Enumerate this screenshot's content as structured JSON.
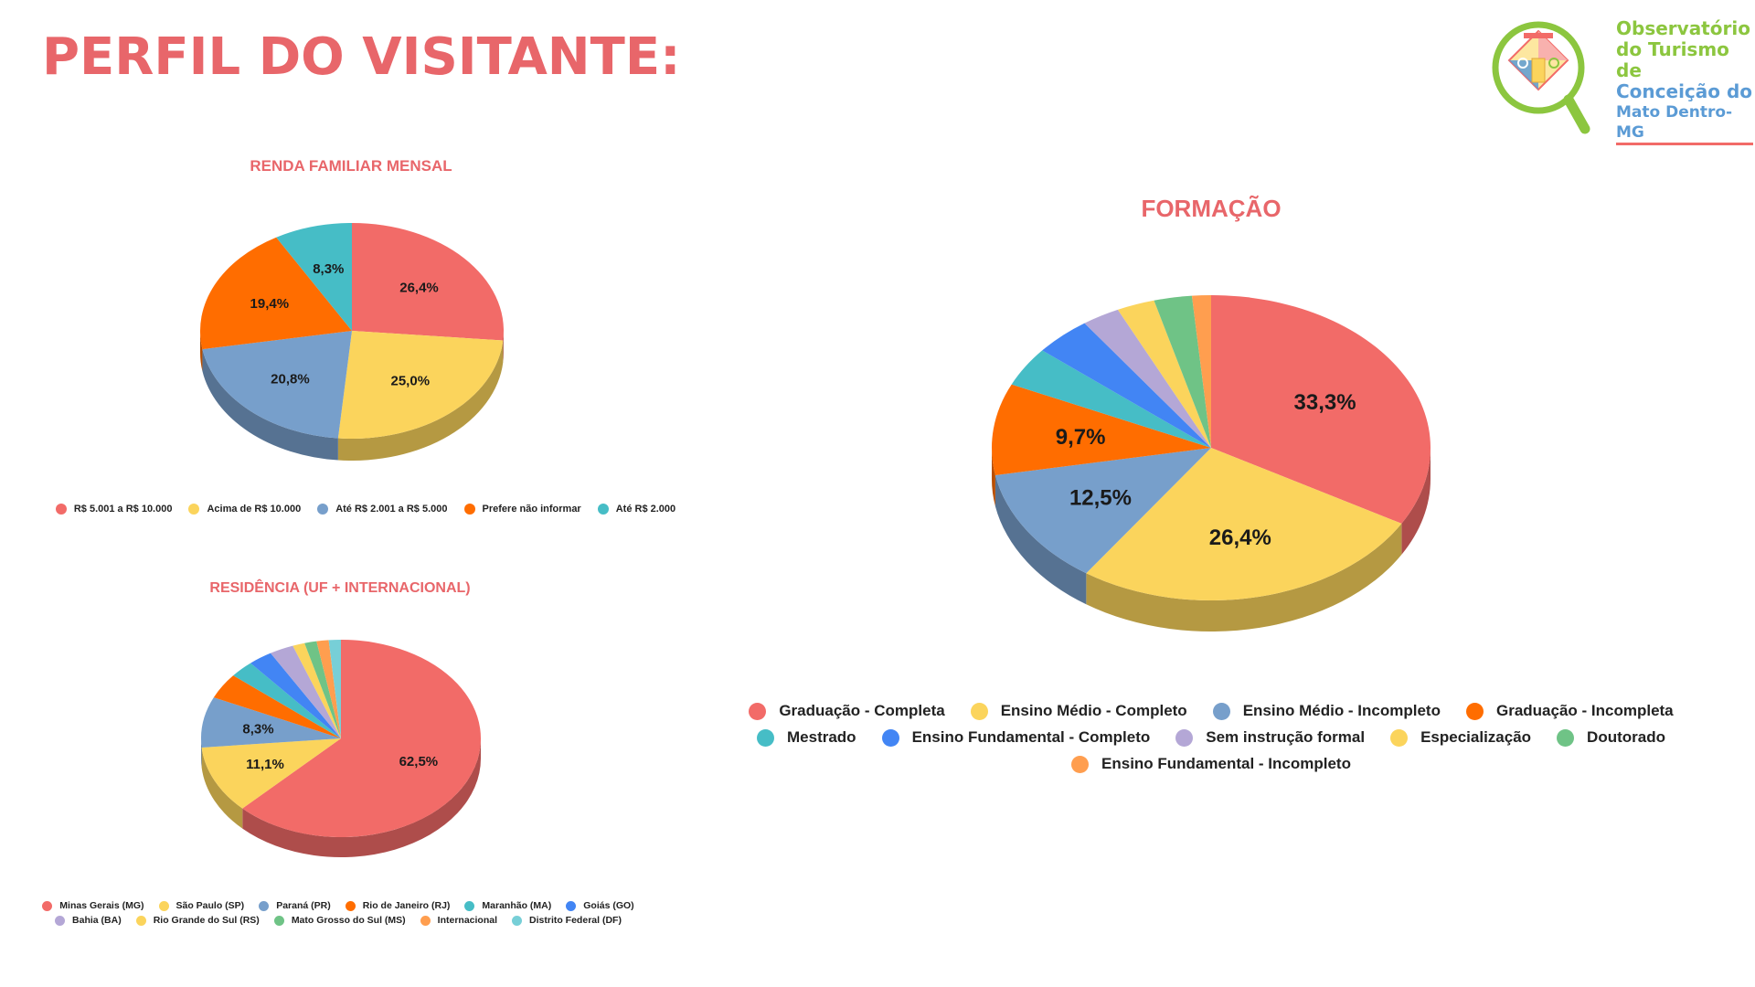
{
  "page": {
    "title": "PERFIL DO VISITANTE:"
  },
  "logo": {
    "lines": [
      "Observatório",
      "do Turismo de",
      "Conceição do",
      "Mato Dentro-MG"
    ],
    "colors": [
      "#8cc63f",
      "#8cc63f",
      "#5b9bd5",
      "#5b9bd5"
    ]
  },
  "chart_data": [
    {
      "id": "renda",
      "type": "pie",
      "title": "RENDA FAMILIAR MENSAL",
      "slices": [
        {
          "name": "R$ 5.001 a R$ 10.000",
          "value": 26.4,
          "label": "26,4%",
          "color": "#f26b68"
        },
        {
          "name": "Acima de R$ 10.000",
          "value": 25.0,
          "label": "25,0%",
          "color": "#fbd45c"
        },
        {
          "name": "Até R$ 2.001 a R$ 5.000",
          "value": 20.8,
          "label": "20,8%",
          "color": "#779fcb"
        },
        {
          "name": "Prefere não informar",
          "value": 19.4,
          "label": "19,4%",
          "color": "#ff6d00"
        },
        {
          "name": "Até R$ 2.000",
          "value": 8.3,
          "label": "8,3%",
          "color": "#46bdc6"
        }
      ]
    },
    {
      "id": "residencia",
      "type": "pie",
      "title": "RESIDÊNCIA (UF + INTERNACIONAL)",
      "slices": [
        {
          "name": "Minas Gerais (MG)",
          "value": 62.5,
          "label": "62,5%",
          "color": "#f26b68"
        },
        {
          "name": "São Paulo (SP)",
          "value": 11.1,
          "label": "11,1%",
          "color": "#fbd45c"
        },
        {
          "name": "Paraná (PR)",
          "value": 8.3,
          "label": "8,3%",
          "color": "#779fcb"
        },
        {
          "name": "Rio de Janeiro (RJ)",
          "value": 4.2,
          "label": "",
          "color": "#ff6d00"
        },
        {
          "name": "Maranhão (MA)",
          "value": 2.8,
          "label": "",
          "color": "#46bdc6"
        },
        {
          "name": "Goiás (GO)",
          "value": 2.8,
          "label": "",
          "color": "#4285f4"
        },
        {
          "name": "Bahia (BA)",
          "value": 2.8,
          "label": "",
          "color": "#b4a7d6"
        },
        {
          "name": "Rio Grande do Sul (RS)",
          "value": 1.4,
          "label": "",
          "color": "#fbd45c"
        },
        {
          "name": "Mato Grosso do Sul (MS)",
          "value": 1.4,
          "label": "",
          "color": "#6fc386"
        },
        {
          "name": "Internacional",
          "value": 1.4,
          "label": "",
          "color": "#ff9e4f"
        },
        {
          "name": "Distrito Federal (DF)",
          "value": 1.4,
          "label": "",
          "color": "#77cfd7"
        }
      ]
    },
    {
      "id": "formacao",
      "type": "pie",
      "title": "FORMAÇÃO",
      "slices": [
        {
          "name": "Graduação - Completa",
          "value": 33.3,
          "label": "33,3%",
          "color": "#f26b68"
        },
        {
          "name": "Ensino Médio - Completo",
          "value": 26.4,
          "label": "26,4%",
          "color": "#fbd45c"
        },
        {
          "name": "Ensino Médio - Incompleto",
          "value": 12.5,
          "label": "12,5%",
          "color": "#779fcb"
        },
        {
          "name": "Graduação - Incompleta",
          "value": 9.7,
          "label": "9,7%",
          "color": "#ff6d00"
        },
        {
          "name": "Mestrado",
          "value": 4.2,
          "label": "",
          "color": "#46bdc6"
        },
        {
          "name": "Ensino Fundamental - Completo",
          "value": 4.2,
          "label": "",
          "color": "#4285f4"
        },
        {
          "name": "Sem instrução formal",
          "value": 2.8,
          "label": "",
          "color": "#b4a7d6"
        },
        {
          "name": "Especialização",
          "value": 2.8,
          "label": "",
          "color": "#fbd45c"
        },
        {
          "name": "Doutorado",
          "value": 2.8,
          "label": "",
          "color": "#6fc386"
        },
        {
          "name": "Ensino Fundamental - Incompleto",
          "value": 1.4,
          "label": "",
          "color": "#ff9e4f"
        }
      ]
    }
  ]
}
